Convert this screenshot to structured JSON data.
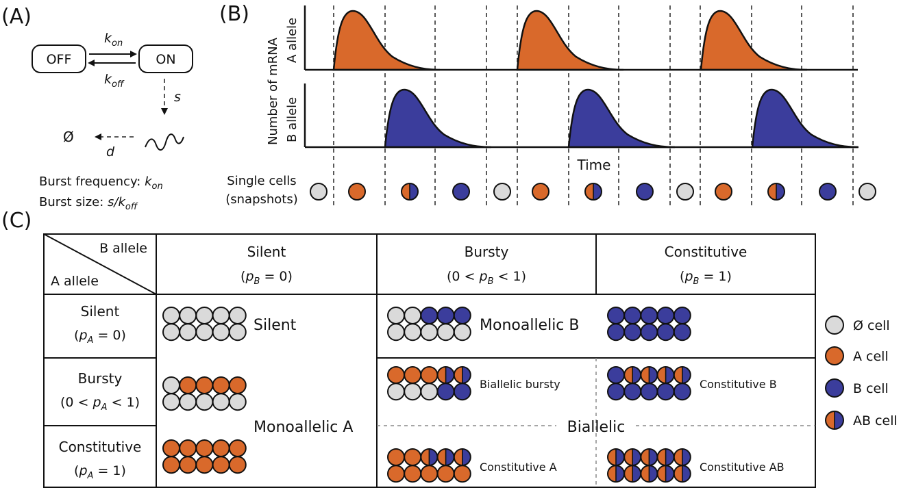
{
  "colors": {
    "empty_cell": "#dadada",
    "a_cell": "#d9692b",
    "b_cell": "#3b3d9c",
    "outline": "#111111"
  },
  "panel_a": {
    "label": "(A)",
    "off_state": "OFF",
    "on_state": "ON",
    "k_sym": "k",
    "on_sub": "on",
    "off_sub": "off",
    "s_label": "s",
    "d_label": "d",
    "null_label": "Ø",
    "burst_freq_prefix": "Burst frequency: ",
    "burst_size_prefix": "Burst size: ",
    "burst_size_expr": "s/k"
  },
  "panel_b": {
    "label": "(B)",
    "ylabel": "Number of mRNA",
    "a_track_label": "A allele",
    "b_track_label": "B allele",
    "xlabel": "Time",
    "snapshot_label_line1": "Single cells",
    "snapshot_label_line2": "(snapshots)",
    "snapshot_states": [
      "empty",
      "a",
      "ab",
      "b",
      "empty",
      "a",
      "ab",
      "b",
      "empty",
      "a",
      "ab",
      "b",
      "empty"
    ],
    "a_burst_cycles": [
      0,
      1,
      2
    ],
    "b_burst_cycles": [
      0,
      1,
      2
    ]
  },
  "panel_c": {
    "label": "(C)",
    "corner_top": "B allele",
    "corner_bottom": "A allele",
    "columns": [
      {
        "name": "Silent",
        "condition": "(p = 0)",
        "p_sym": "p",
        "sub": "B",
        "rel": " = 0"
      },
      {
        "name": "Bursty",
        "condition_prefix": "(0 < ",
        "p_sym": "p",
        "sub": "B",
        "condition_suffix": " < 1)"
      },
      {
        "name": "Constitutive",
        "p_sym": "p",
        "sub": "B",
        "rel": " = 1"
      }
    ],
    "rows": [
      {
        "name": "Silent",
        "p_sym": "p",
        "sub": "A",
        "rel": " = 0"
      },
      {
        "name": "Bursty",
        "condition_prefix": "(0 < ",
        "p_sym": "p",
        "sub": "A",
        "condition_suffix": " < 1)"
      },
      {
        "name": "Constitutive",
        "p_sym": "p",
        "sub": "A",
        "rel": " = 1"
      }
    ],
    "cell_texts": {
      "silent": "Silent",
      "monoallelic_b": "Monoallelic B",
      "monoallelic_a": "Monoallelic A",
      "biallelic_bursty": "Biallelic bursty",
      "constitutive_b": "Constitutive B",
      "biallelic": "Biallelic",
      "constitutive_a": "Constitutive A",
      "constitutive_ab": "Constitutive AB"
    },
    "grids": {
      "silent_silent": [
        [
          "empty",
          "empty",
          "empty",
          "empty",
          "empty"
        ],
        [
          "empty",
          "empty",
          "empty",
          "empty",
          "empty"
        ]
      ],
      "silent_bursty": [
        [
          "empty",
          "empty",
          "b",
          "b",
          "b"
        ],
        [
          "empty",
          "empty",
          "empty",
          "empty",
          "empty"
        ]
      ],
      "silent_constitutive": [
        [
          "b",
          "b",
          "b",
          "b",
          "b"
        ],
        [
          "b",
          "b",
          "b",
          "b",
          "b"
        ]
      ],
      "bursty_silent": [
        [
          "empty",
          "a",
          "a",
          "a",
          "a"
        ],
        [
          "empty",
          "empty",
          "empty",
          "empty",
          "empty"
        ]
      ],
      "bursty_bursty": [
        [
          "a",
          "a",
          "a",
          "ab",
          "ab"
        ],
        [
          "empty",
          "empty",
          "empty",
          "b",
          "b"
        ]
      ],
      "bursty_constitutive": [
        [
          "b",
          "ab",
          "ab",
          "ab",
          "ab"
        ],
        [
          "b",
          "b",
          "b",
          "b",
          "b"
        ]
      ],
      "constitutive_silent": [
        [
          "a",
          "a",
          "a",
          "a",
          "a"
        ],
        [
          "a",
          "a",
          "a",
          "a",
          "a"
        ]
      ],
      "constitutive_bursty": [
        [
          "a",
          "a",
          "ab",
          "ab",
          "ab"
        ],
        [
          "a",
          "a",
          "a",
          "a",
          "a"
        ]
      ],
      "constitutive_constitutive": [
        [
          "ab",
          "ab",
          "ab",
          "ab",
          "ab"
        ],
        [
          "ab",
          "ab",
          "ab",
          "ab",
          "ab"
        ]
      ]
    }
  },
  "legend": {
    "items": [
      {
        "state": "empty",
        "label": "Ø cell"
      },
      {
        "state": "a",
        "label": "A cell"
      },
      {
        "state": "b",
        "label": "B cell"
      },
      {
        "state": "ab",
        "label": "AB cell"
      }
    ]
  }
}
